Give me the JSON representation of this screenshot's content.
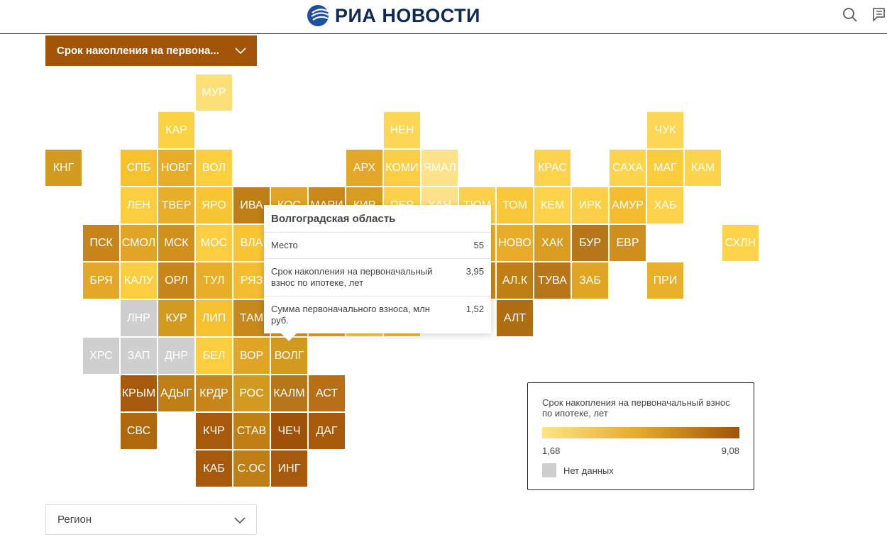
{
  "header": {
    "logo_text": "РИА НОВОСТИ",
    "icons": [
      "search-icon",
      "comment-icon"
    ]
  },
  "metric_dropdown": {
    "selected": "Срок накопления на первона..."
  },
  "region_dropdown": {
    "selected": "Регион"
  },
  "tiles": [
    {
      "l": "МУР",
      "c": 4,
      "r": 0,
      "color": "#fddf78"
    },
    {
      "l": "КАР",
      "c": 3,
      "r": 1,
      "color": "#fcd245"
    },
    {
      "l": "НЕН",
      "c": 9,
      "r": 1,
      "color": "#fcd654"
    },
    {
      "l": "ЧУК",
      "c": 16,
      "r": 1,
      "color": "#fcd654"
    },
    {
      "l": "КНГ",
      "c": 0,
      "r": 2,
      "color": "#d39a20"
    },
    {
      "l": "СПБ",
      "c": 2,
      "r": 2,
      "color": "#f6c12e"
    },
    {
      "l": "НОВГ",
      "c": 3,
      "r": 2,
      "color": "#e8ad26"
    },
    {
      "l": "ВОЛ",
      "c": 4,
      "r": 2,
      "color": "#fccf3e"
    },
    {
      "l": "АРХ",
      "c": 8,
      "r": 2,
      "color": "#e5a727"
    },
    {
      "l": "КОМИ",
      "c": 9,
      "r": 2,
      "color": "#fbcd45"
    },
    {
      "l": "ЯМАЛ",
      "c": 10,
      "r": 2,
      "color": "#fde28a"
    },
    {
      "l": "КРАС",
      "c": 13,
      "r": 2,
      "color": "#fcd34a"
    },
    {
      "l": "САХА",
      "c": 15,
      "r": 2,
      "color": "#fcd34a"
    },
    {
      "l": "МАГ",
      "c": 16,
      "r": 2,
      "color": "#fbcc3c"
    },
    {
      "l": "КАМ",
      "c": 17,
      "r": 2,
      "color": "#fcd34a"
    },
    {
      "l": "ЛЕН",
      "c": 2,
      "r": 3,
      "color": "#fbcd40"
    },
    {
      "l": "ТВЕР",
      "c": 3,
      "r": 3,
      "color": "#e9ae28"
    },
    {
      "l": "ЯРО",
      "c": 4,
      "r": 3,
      "color": "#f9c633"
    },
    {
      "l": "ИВА",
      "c": 5,
      "r": 3,
      "color": "#c07f14"
    },
    {
      "l": "КОС",
      "c": 6,
      "r": 3,
      "color": "#e0a524"
    },
    {
      "l": "МАРИ",
      "c": 7,
      "r": 3,
      "color": "#c8881a"
    },
    {
      "l": "КИР",
      "c": 8,
      "r": 3,
      "color": "#d89c20"
    },
    {
      "l": "ПЕР",
      "c": 9,
      "r": 3,
      "color": "#fcd24c"
    },
    {
      "l": "ХАН",
      "c": 10,
      "r": 3,
      "color": "#fde08a"
    },
    {
      "l": "ТЮМ",
      "c": 11,
      "r": 3,
      "color": "#fcd24c"
    },
    {
      "l": "ТОМ",
      "c": 12,
      "r": 3,
      "color": "#f9c83a"
    },
    {
      "l": "КЕМ",
      "c": 13,
      "r": 3,
      "color": "#fcd34a"
    },
    {
      "l": "ИРК",
      "c": 14,
      "r": 3,
      "color": "#fbd048"
    },
    {
      "l": "АМУР",
      "c": 15,
      "r": 3,
      "color": "#f4bd30"
    },
    {
      "l": "ХАБ",
      "c": 16,
      "r": 3,
      "color": "#fcd34a"
    },
    {
      "l": "ПСК",
      "c": 1,
      "r": 4,
      "color": "#c8861a"
    },
    {
      "l": "СМОЛ",
      "c": 2,
      "r": 4,
      "color": "#e0a524"
    },
    {
      "l": "МСК",
      "c": 3,
      "r": 4,
      "color": "#cf901c"
    },
    {
      "l": "МОС",
      "c": 4,
      "r": 4,
      "color": "#fbcd40"
    },
    {
      "l": "ВЛА",
      "c": 5,
      "r": 4,
      "color": "#f9c633"
    },
    {
      "l": "НОВО",
      "c": 12,
      "r": 4,
      "color": "#e8ad26"
    },
    {
      "l": "ХАК",
      "c": 13,
      "r": 4,
      "color": "#d99d22"
    },
    {
      "l": "БУР",
      "c": 14,
      "r": 4,
      "color": "#b8761a"
    },
    {
      "l": "ЕВР",
      "c": 15,
      "r": 4,
      "color": "#cf8f1c"
    },
    {
      "l": "СХЛН",
      "c": 18,
      "r": 4,
      "color": "#fcd34a"
    },
    {
      "l": "БРЯ",
      "c": 1,
      "r": 5,
      "color": "#e5a727"
    },
    {
      "l": "КАЛУ",
      "c": 2,
      "r": 5,
      "color": "#fbcd40"
    },
    {
      "l": "ОРЛ",
      "c": 3,
      "r": 5,
      "color": "#c8861a"
    },
    {
      "l": "ТУЛ",
      "c": 4,
      "r": 5,
      "color": "#e9ae28"
    },
    {
      "l": "РЯЗ",
      "c": 5,
      "r": 5,
      "color": "#f4bd30"
    },
    {
      "l": "АЛ.К",
      "c": 12,
      "r": 5,
      "color": "#c07f14"
    },
    {
      "l": "ТУВА",
      "c": 13,
      "r": 5,
      "color": "#b8761a"
    },
    {
      "l": "ЗАБ",
      "c": 14,
      "r": 5,
      "color": "#e0a524"
    },
    {
      "l": "ПРИ",
      "c": 16,
      "r": 5,
      "color": "#e9b02a"
    },
    {
      "l": "ЛНР",
      "c": 2,
      "r": 6,
      "color": "#cfcfcf"
    },
    {
      "l": "КУР",
      "c": 3,
      "r": 6,
      "color": "#d39a20"
    },
    {
      "l": "ЛИП",
      "c": 4,
      "r": 6,
      "color": "#f6c12e"
    },
    {
      "l": "ТАМ",
      "c": 5,
      "r": 6,
      "color": "#c8881a"
    },
    {
      "l": "АЛТ",
      "c": 12,
      "r": 6,
      "color": "#b06e12"
    },
    {
      "l": "ХРС",
      "c": 1,
      "r": 7,
      "color": "#cfcfcf"
    },
    {
      "l": "ЗАП",
      "c": 2,
      "r": 7,
      "color": "#cfcfcf"
    },
    {
      "l": "ДНР",
      "c": 3,
      "r": 7,
      "color": "#cfcfcf"
    },
    {
      "l": "БЕЛ",
      "c": 4,
      "r": 7,
      "color": "#fbcd40"
    },
    {
      "l": "ВОР",
      "c": 5,
      "r": 7,
      "color": "#e0a524"
    },
    {
      "l": "ВОЛГ",
      "c": 6,
      "r": 7,
      "color": "#d39a20"
    },
    {
      "l": "КРЫМ",
      "c": 2,
      "r": 8,
      "color": "#a85a0c"
    },
    {
      "l": "АДЫГ",
      "c": 3,
      "r": 8,
      "color": "#c07f14"
    },
    {
      "l": "КРДР",
      "c": 4,
      "r": 8,
      "color": "#c8861a"
    },
    {
      "l": "РОС",
      "c": 5,
      "r": 8,
      "color": "#d39a20"
    },
    {
      "l": "КАЛМ",
      "c": 6,
      "r": 8,
      "color": "#b8761a"
    },
    {
      "l": "АСТ",
      "c": 7,
      "r": 8,
      "color": "#b87018"
    },
    {
      "l": "СВС",
      "c": 2,
      "r": 9,
      "color": "#b0680f"
    },
    {
      "l": "КЧР",
      "c": 4,
      "r": 9,
      "color": "#a85a0c"
    },
    {
      "l": "СТАВ",
      "c": 5,
      "r": 9,
      "color": "#c07f14"
    },
    {
      "l": "ЧЕЧ",
      "c": 6,
      "r": 9,
      "color": "#a0520a"
    },
    {
      "l": "ДАГ",
      "c": 7,
      "r": 9,
      "color": "#a85a0c"
    },
    {
      "l": "КАБ",
      "c": 4,
      "r": 10,
      "color": "#a85a0c"
    },
    {
      "l": "С.ОС",
      "c": 5,
      "r": 10,
      "color": "#c07f14"
    },
    {
      "l": "ИНГ",
      "c": 6,
      "r": 10,
      "color": "#a85a0c"
    }
  ],
  "hidden_tiles": [
    {
      "c": 6,
      "r": 4,
      "color": "#e0a524"
    },
    {
      "c": 7,
      "r": 4,
      "color": "#e5a727"
    },
    {
      "c": 8,
      "r": 4,
      "color": "#f4bd30"
    },
    {
      "c": 9,
      "r": 4,
      "color": "#e8ad26"
    },
    {
      "c": 10,
      "r": 4,
      "color": "#fcd24c"
    },
    {
      "c": 11,
      "r": 4,
      "color": "#e9ae28"
    },
    {
      "c": 6,
      "r": 5,
      "color": "#f4bd30"
    },
    {
      "c": 7,
      "r": 5,
      "color": "#e0a524"
    },
    {
      "c": 8,
      "r": 5,
      "color": "#e9ae28"
    },
    {
      "c": 9,
      "r": 5,
      "color": "#e0a524"
    },
    {
      "c": 10,
      "r": 5,
      "color": "#f6c12e"
    },
    {
      "c": 11,
      "r": 5,
      "color": "#c8881a"
    },
    {
      "c": 6,
      "r": 6,
      "color": "#d39a20"
    },
    {
      "c": 7,
      "r": 6,
      "color": "#e0a524"
    },
    {
      "c": 8,
      "r": 6,
      "color": "#fbcd40"
    },
    {
      "c": 9,
      "r": 6,
      "color": "#f4bd30"
    }
  ],
  "tooltip": {
    "title": "Волгоградская область",
    "rows": [
      {
        "label": "Место",
        "value": "55"
      },
      {
        "label": "Срок накопления на первоначальный взнос по ипотеке, лет",
        "value": "3,95"
      },
      {
        "label": "Сумма первоначального взноса, млн руб.",
        "value": "1,52"
      }
    ]
  },
  "legend": {
    "title": "Срок накопления на первоначальный взнос по ипотеке, лет",
    "min": "1,68",
    "max": "9,08",
    "no_data": "Нет данных",
    "colors": {
      "min": "#fde487",
      "mid": "#e4a92b",
      "max": "#a0520a",
      "no_data": "#cfcfcf"
    }
  }
}
